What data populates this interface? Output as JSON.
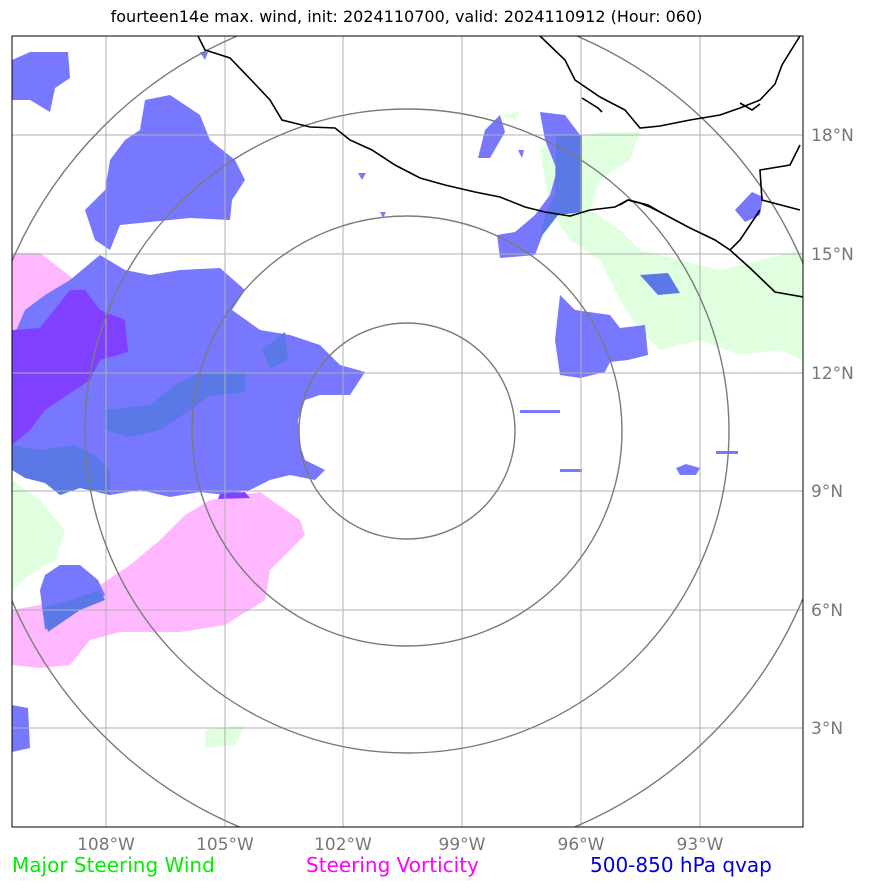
{
  "title": "fourteen14e max. wind, init: 2024110700, valid: 2024110912 (Hour: 060)",
  "longitude_ticks": [
    "108°W",
    "105°W",
    "102°W",
    "99°W",
    "96°W",
    "93°W"
  ],
  "latitude_ticks": [
    "18°N",
    "15°N",
    "12°N",
    "9°N",
    "6°N",
    "3°N"
  ],
  "legend": {
    "wind": {
      "label": "Major Steering Wind",
      "color": "#00ee00"
    },
    "vorticity": {
      "label": "Steering Vorticity",
      "color": "#ff00ff"
    },
    "qvap": {
      "label": "500-850 hPa qvap",
      "color": "#0000dd"
    }
  },
  "layers": {
    "wind_fill": "#dfffdf",
    "vorticity_fill": "#ffb8ff",
    "qvap_fill": "#7878ff",
    "qvap_dark_fill": "#5a78e6",
    "qvap_overlap_fill": "#8040ff",
    "coastline": "#000000",
    "range_rings": "#7a7a7a",
    "gridlines": "#b0b0b0"
  }
}
